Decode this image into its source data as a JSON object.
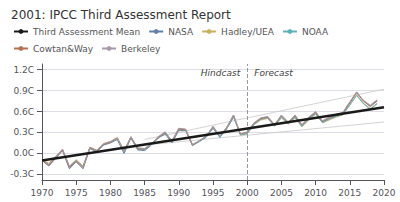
{
  "chart_data": {
    "type": "line",
    "title": "2001: IPCC Third Assessment Report",
    "xlim": [
      1970,
      2020
    ],
    "ylim": [
      -0.38,
      1.28
    ],
    "xticks": [
      1970,
      1975,
      1980,
      1985,
      1990,
      1995,
      2000,
      2005,
      2010,
      2015,
      2020
    ],
    "yticks": [
      {
        "value": -0.3,
        "label": "-0.3C"
      },
      {
        "value": 0.0,
        "label": "0.0C"
      },
      {
        "value": 0.3,
        "label": "0.3C"
      },
      {
        "value": 0.6,
        "label": "0.6C"
      },
      {
        "value": 0.9,
        "label": "0.9C"
      },
      {
        "value": 1.2,
        "label": "1.2C"
      }
    ],
    "grid": true,
    "legend": "top-left",
    "vertical_line": {
      "x": 2000,
      "color": "#999999",
      "line_style": "dashed",
      "left_label": "Hindcast",
      "right_label": "Forecast"
    },
    "series": [
      {
        "name": "Third Assessment Mean",
        "color": "#1a1a1a",
        "line_style": "thick",
        "x": [
          1970,
          2020
        ],
        "values": [
          -0.1,
          0.66
        ]
      },
      {
        "name": "NASA",
        "color": "#6080a8",
        "x": [
          1970,
          1971,
          1972,
          1973,
          1974,
          1975,
          1976,
          1977,
          1978,
          1979,
          1980,
          1981,
          1982,
          1983,
          1984,
          1985,
          1986,
          1987,
          1988,
          1989,
          1990,
          1991,
          1992,
          1993,
          1994,
          1995,
          1996,
          1997,
          1998,
          1999,
          2000,
          2001,
          2002,
          2003,
          2004,
          2005,
          2006,
          2007,
          2008,
          2009,
          2010,
          2011,
          2012,
          2013,
          2014,
          2015,
          2016,
          2017,
          2018,
          2019
        ],
        "values": [
          -0.1,
          -0.18,
          -0.07,
          0.04,
          -0.22,
          -0.12,
          -0.22,
          0.07,
          0.02,
          0.12,
          0.15,
          0.2,
          0.0,
          0.22,
          0.05,
          0.04,
          0.12,
          0.22,
          0.28,
          0.15,
          0.33,
          0.33,
          0.12,
          0.17,
          0.23,
          0.36,
          0.23,
          0.35,
          0.52,
          0.28,
          0.29,
          0.43,
          0.5,
          0.52,
          0.4,
          0.54,
          0.44,
          0.53,
          0.4,
          0.5,
          0.58,
          0.45,
          0.5,
          0.54,
          0.57,
          0.72,
          0.88,
          0.75,
          0.67,
          0.75
        ]
      },
      {
        "name": "Hadley/UEA",
        "color": "#c8b060",
        "x": [
          1970,
          1971,
          1972,
          1973,
          1974,
          1975,
          1976,
          1977,
          1978,
          1979,
          1980,
          1981,
          1982,
          1983,
          1984,
          1985,
          1986,
          1987,
          1988,
          1989,
          1990,
          1991,
          1992,
          1993,
          1994,
          1995,
          1996,
          1997,
          1998,
          1999,
          2000,
          2001,
          2002,
          2003,
          2004,
          2005,
          2006,
          2007,
          2008,
          2009,
          2010,
          2011,
          2012,
          2013,
          2014,
          2015,
          2016,
          2017,
          2018,
          2019
        ],
        "values": [
          -0.08,
          -0.14,
          -0.04,
          0.06,
          -0.18,
          -0.09,
          -0.18,
          0.09,
          0.05,
          0.14,
          0.17,
          0.23,
          0.04,
          0.24,
          0.07,
          0.07,
          0.14,
          0.24,
          0.3,
          0.18,
          0.36,
          0.34,
          0.12,
          0.18,
          0.25,
          0.38,
          0.24,
          0.37,
          0.54,
          0.26,
          0.29,
          0.42,
          0.48,
          0.5,
          0.39,
          0.51,
          0.42,
          0.51,
          0.38,
          0.48,
          0.56,
          0.44,
          0.48,
          0.52,
          0.55,
          0.7,
          0.84,
          0.72,
          0.64,
          0.72
        ]
      },
      {
        "name": "NOAA",
        "color": "#60b0b8",
        "x": [
          1970,
          1971,
          1972,
          1973,
          1974,
          1975,
          1976,
          1977,
          1978,
          1979,
          1980,
          1981,
          1982,
          1983,
          1984,
          1985,
          1986,
          1987,
          1988,
          1989,
          1990,
          1991,
          1992,
          1993,
          1994,
          1995,
          1996,
          1997,
          1998,
          1999,
          2000,
          2001,
          2002,
          2003,
          2004,
          2005,
          2006,
          2007,
          2008,
          2009,
          2010,
          2011,
          2012,
          2013,
          2014,
          2015,
          2016,
          2017,
          2018,
          2019
        ],
        "values": [
          -0.09,
          -0.16,
          -0.05,
          0.05,
          -0.19,
          -0.1,
          -0.19,
          0.08,
          0.03,
          0.13,
          0.16,
          0.21,
          0.02,
          0.23,
          0.06,
          0.05,
          0.13,
          0.23,
          0.29,
          0.17,
          0.35,
          0.33,
          0.11,
          0.17,
          0.24,
          0.37,
          0.23,
          0.36,
          0.53,
          0.27,
          0.28,
          0.41,
          0.49,
          0.51,
          0.39,
          0.52,
          0.43,
          0.52,
          0.39,
          0.49,
          0.57,
          0.44,
          0.49,
          0.53,
          0.56,
          0.69,
          0.83,
          0.71,
          0.63,
          0.71
        ]
      },
      {
        "name": "Cowtan&Way",
        "color": "#b87050",
        "x": [
          1970,
          1971,
          1972,
          1973,
          1974,
          1975,
          1976,
          1977,
          1978,
          1979,
          1980,
          1981,
          1982,
          1983,
          1984,
          1985,
          1986,
          1987,
          1988,
          1989,
          1990,
          1991,
          1992,
          1993,
          1994,
          1995,
          1996,
          1997,
          1998,
          1999,
          2000,
          2001,
          2002,
          2003,
          2004,
          2005,
          2006,
          2007,
          2008,
          2009,
          2010,
          2011,
          2012,
          2013,
          2014,
          2015,
          2016,
          2017,
          2018,
          2019
        ],
        "values": [
          -0.1,
          -0.17,
          -0.06,
          0.05,
          -0.2,
          -0.11,
          -0.2,
          0.08,
          0.04,
          0.13,
          0.16,
          0.22,
          0.03,
          0.23,
          0.07,
          0.06,
          0.14,
          0.23,
          0.3,
          0.18,
          0.35,
          0.34,
          0.12,
          0.18,
          0.25,
          0.38,
          0.25,
          0.37,
          0.55,
          0.28,
          0.3,
          0.43,
          0.5,
          0.52,
          0.41,
          0.54,
          0.44,
          0.54,
          0.41,
          0.51,
          0.59,
          0.46,
          0.51,
          0.55,
          0.58,
          0.73,
          0.87,
          0.75,
          0.68,
          0.76
        ]
      },
      {
        "name": "Berkeley",
        "color": "#a898a8",
        "x": [
          1970,
          1971,
          1972,
          1973,
          1974,
          1975,
          1976,
          1977,
          1978,
          1979,
          1980,
          1981,
          1982,
          1983,
          1984,
          1985,
          1986,
          1987,
          1988,
          1989,
          1990,
          1991,
          1992,
          1993,
          1994,
          1995,
          1996,
          1997,
          1998,
          1999,
          2000,
          2001,
          2002,
          2003,
          2004,
          2005,
          2006,
          2007,
          2008,
          2009,
          2010,
          2011,
          2012,
          2013,
          2014,
          2015,
          2016,
          2017,
          2018,
          2019
        ],
        "values": [
          -0.09,
          -0.16,
          -0.05,
          0.06,
          -0.19,
          -0.1,
          -0.19,
          0.09,
          0.04,
          0.14,
          0.17,
          0.22,
          0.03,
          0.24,
          0.08,
          0.07,
          0.14,
          0.24,
          0.31,
          0.18,
          0.36,
          0.35,
          0.13,
          0.18,
          0.25,
          0.39,
          0.25,
          0.37,
          0.55,
          0.28,
          0.31,
          0.44,
          0.51,
          0.53,
          0.41,
          0.55,
          0.45,
          0.55,
          0.41,
          0.52,
          0.6,
          0.47,
          0.52,
          0.56,
          0.59,
          0.74,
          0.88,
          0.76,
          0.69,
          0.77
        ]
      },
      {
        "color": "#c8c8c8",
        "x": [
          1985,
          2020
        ],
        "values": [
          0.2,
          0.92
        ]
      },
      {
        "color": "#c8c8c8",
        "x": [
          1985,
          2020
        ],
        "values": [
          0.12,
          0.45
        ]
      }
    ]
  }
}
